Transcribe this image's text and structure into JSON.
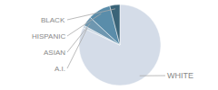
{
  "chart_data": {
    "type": "pie",
    "categories": [
      "WHITE",
      "A.I.",
      "ASIAN",
      "HISPANIC",
      "BLACK"
    ],
    "values": [
      82,
      1,
      4,
      9,
      4
    ],
    "colors": [
      "#d4dce8",
      "#c5d3e0",
      "#6e97b0",
      "#5a8daa",
      "#3a6478"
    ]
  }
}
